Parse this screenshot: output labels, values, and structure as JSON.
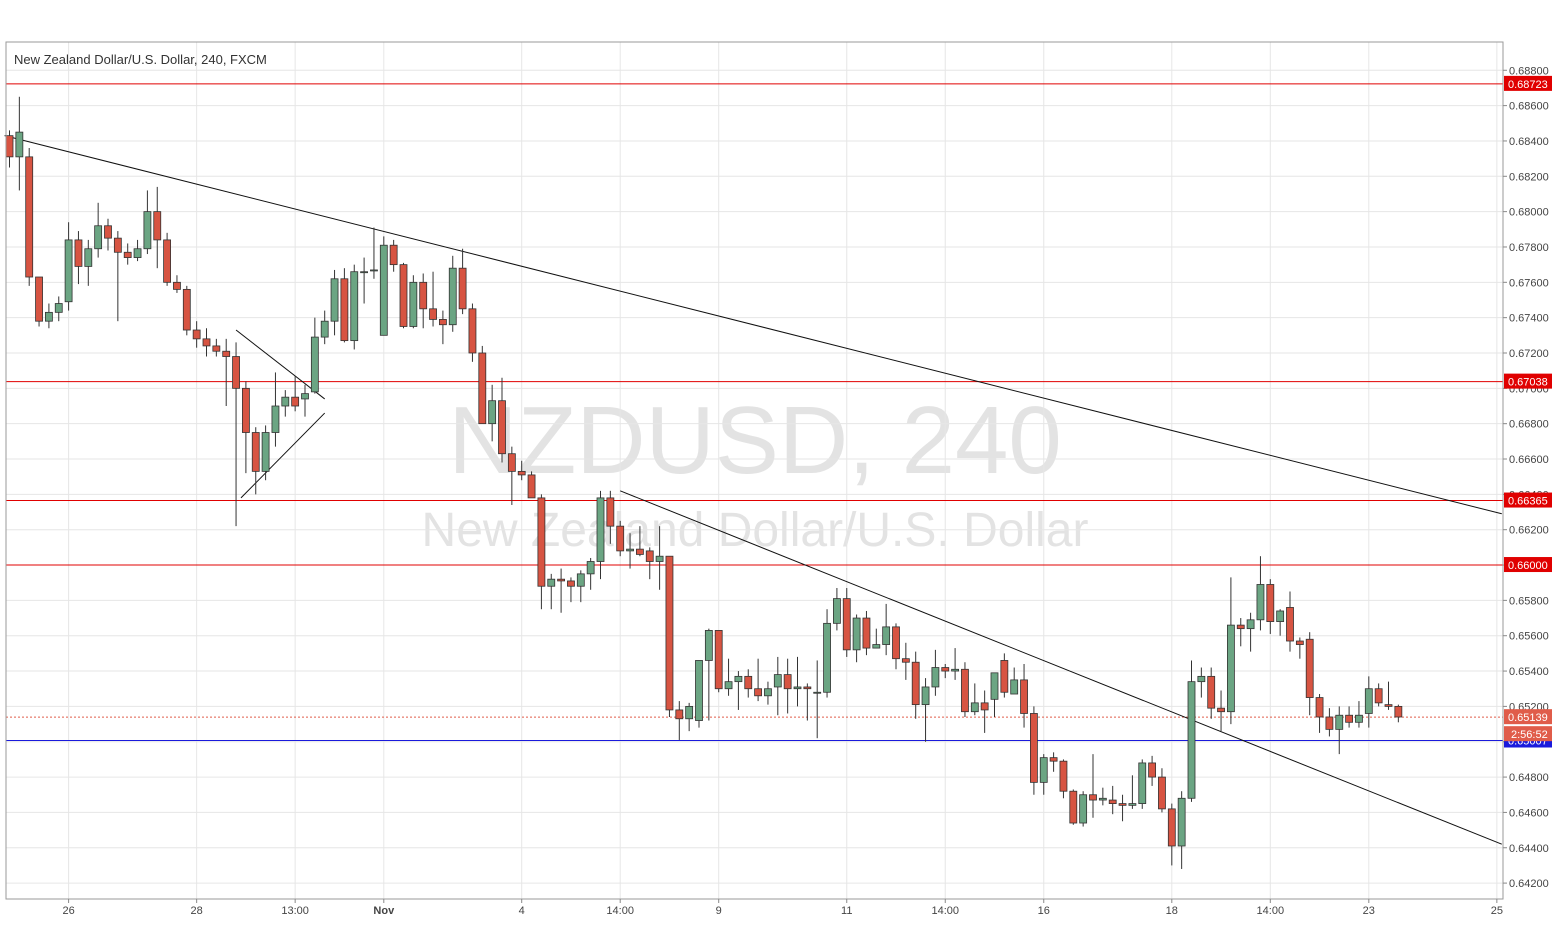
{
  "header": {
    "title": "New Zealand Dollar/U.S. Dollar, 240, FXCM"
  },
  "watermark": {
    "symbol": "NZDUSD, 240",
    "name": "New Zealand Dollar/U.S. Dollar"
  },
  "colors": {
    "up": "#6ba583",
    "down": "#d75442",
    "wick": "#333333",
    "grid": "#e6e6e6",
    "hline": "#e00000",
    "blueline": "#1a1adc",
    "trend": "#111111",
    "watermark": "#e3e3e3",
    "current": "#e05c4a"
  },
  "chart_data": {
    "type": "candlestick",
    "title": "New Zealand Dollar/U.S. Dollar, 240, FXCM",
    "ylim": [
      0.6411,
      0.6896
    ],
    "yticks": [
      "0.68800",
      "0.68600",
      "0.68400",
      "0.68200",
      "0.68000",
      "0.67800",
      "0.67600",
      "0.67400",
      "0.67200",
      "0.67000",
      "0.66800",
      "0.66600",
      "0.66400",
      "0.66200",
      "0.66000",
      "0.65800",
      "0.65600",
      "0.65400",
      "0.65200",
      "0.65000",
      "0.64800",
      "0.64600",
      "0.64400",
      "0.64200"
    ],
    "xticks": [
      {
        "label": "26",
        "idx": 6
      },
      {
        "label": "28",
        "idx": 19
      },
      {
        "label": "13:00",
        "idx": 29
      },
      {
        "label": "Nov",
        "idx": 38
      },
      {
        "label": "4",
        "idx": 52
      },
      {
        "label": "14:00",
        "idx": 62
      },
      {
        "label": "9",
        "idx": 72
      },
      {
        "label": "11",
        "idx": 85
      },
      {
        "label": "14:00",
        "idx": 95
      },
      {
        "label": "16",
        "idx": 105
      },
      {
        "label": "18",
        "idx": 118
      },
      {
        "label": "14:00",
        "idx": 128
      },
      {
        "label": "23",
        "idx": 138
      },
      {
        "label": "25",
        "idx": 151
      }
    ],
    "levels": [
      {
        "value": 0.68723,
        "label": "0.68723",
        "kind": "red"
      },
      {
        "value": 0.67038,
        "label": "0.67038",
        "kind": "red"
      },
      {
        "value": 0.66365,
        "label": "0.66365",
        "kind": "red"
      },
      {
        "value": 0.66,
        "label": "0.66000",
        "kind": "red"
      },
      {
        "value": 0.65007,
        "label": "0.65007",
        "kind": "blue"
      }
    ],
    "current_price": {
      "value": 0.65139,
      "label": "0.65139",
      "countdown": "2:56:52"
    },
    "trendlines": [
      {
        "i1": -0.5,
        "p1": 0.6843,
        "i2": 151.5,
        "p2": 0.6629
      },
      {
        "i1": 62,
        "p1": 0.6642,
        "i2": 151.5,
        "p2": 0.6442
      },
      {
        "i1": 23,
        "p1": 0.6733,
        "i2": 32,
        "p2": 0.6694
      },
      {
        "i1": 23.5,
        "p1": 0.6638,
        "i2": 32,
        "p2": 0.6686
      }
    ],
    "candles": [
      [
        0.6843,
        0.6846,
        0.6825,
        0.6831
      ],
      [
        0.6831,
        0.6865,
        0.6812,
        0.6845
      ],
      [
        0.6831,
        0.6836,
        0.6758,
        0.6763
      ],
      [
        0.6763,
        0.6763,
        0.6735,
        0.6738
      ],
      [
        0.6738,
        0.6748,
        0.6734,
        0.6743
      ],
      [
        0.6743,
        0.6752,
        0.6738,
        0.6748
      ],
      [
        0.6749,
        0.6794,
        0.6744,
        0.6784
      ],
      [
        0.6784,
        0.6789,
        0.6759,
        0.6769
      ],
      [
        0.6769,
        0.6784,
        0.6758,
        0.6779
      ],
      [
        0.6779,
        0.6805,
        0.6774,
        0.6792
      ],
      [
        0.6792,
        0.6796,
        0.6778,
        0.6785
      ],
      [
        0.6785,
        0.6789,
        0.6738,
        0.6777
      ],
      [
        0.6777,
        0.6782,
        0.677,
        0.6774
      ],
      [
        0.6774,
        0.6784,
        0.6772,
        0.6779
      ],
      [
        0.6779,
        0.6812,
        0.6776,
        0.68
      ],
      [
        0.68,
        0.6814,
        0.6768,
        0.6784
      ],
      [
        0.6784,
        0.6788,
        0.6758,
        0.676
      ],
      [
        0.676,
        0.6764,
        0.6754,
        0.6756
      ],
      [
        0.6756,
        0.6758,
        0.673,
        0.6733
      ],
      [
        0.6733,
        0.6738,
        0.6723,
        0.6728
      ],
      [
        0.6728,
        0.6734,
        0.6718,
        0.6724
      ],
      [
        0.6724,
        0.6728,
        0.6718,
        0.6721
      ],
      [
        0.6721,
        0.6728,
        0.669,
        0.6718
      ],
      [
        0.6718,
        0.6726,
        0.6622,
        0.67
      ],
      [
        0.67,
        0.6704,
        0.6652,
        0.6675
      ],
      [
        0.6675,
        0.6678,
        0.664,
        0.6653
      ],
      [
        0.6653,
        0.6679,
        0.6648,
        0.6675
      ],
      [
        0.6675,
        0.6709,
        0.6667,
        0.669
      ],
      [
        0.669,
        0.6699,
        0.6684,
        0.6695
      ],
      [
        0.6695,
        0.6707,
        0.6687,
        0.669
      ],
      [
        0.6694,
        0.6702,
        0.6684,
        0.6697
      ],
      [
        0.6698,
        0.674,
        0.6697,
        0.6729
      ],
      [
        0.6729,
        0.6744,
        0.6725,
        0.6738
      ],
      [
        0.6738,
        0.6767,
        0.673,
        0.6762
      ],
      [
        0.6762,
        0.6768,
        0.6726,
        0.6727
      ],
      [
        0.6727,
        0.677,
        0.6722,
        0.6766
      ],
      [
        0.6766,
        0.6774,
        0.6748,
        0.6766
      ],
      [
        0.6767,
        0.6791,
        0.6762,
        0.6767
      ],
      [
        0.673,
        0.6786,
        0.673,
        0.6781
      ],
      [
        0.6781,
        0.6784,
        0.6766,
        0.677
      ],
      [
        0.677,
        0.6771,
        0.6734,
        0.6735
      ],
      [
        0.6735,
        0.6764,
        0.6734,
        0.676
      ],
      [
        0.676,
        0.6765,
        0.6734,
        0.6745
      ],
      [
        0.6745,
        0.6766,
        0.6735,
        0.6739
      ],
      [
        0.6739,
        0.6744,
        0.6725,
        0.6736
      ],
      [
        0.6736,
        0.6775,
        0.6732,
        0.6768
      ],
      [
        0.6768,
        0.6779,
        0.6742,
        0.6745
      ],
      [
        0.6745,
        0.6748,
        0.6715,
        0.672
      ],
      [
        0.672,
        0.6724,
        0.668,
        0.668
      ],
      [
        0.668,
        0.6702,
        0.667,
        0.6693
      ],
      [
        0.6693,
        0.6706,
        0.6658,
        0.6663
      ],
      [
        0.6663,
        0.6667,
        0.6634,
        0.6653
      ],
      [
        0.6653,
        0.6659,
        0.6648,
        0.6651
      ],
      [
        0.6651,
        0.6653,
        0.6638,
        0.6638
      ],
      [
        0.6638,
        0.664,
        0.6575,
        0.6588
      ],
      [
        0.6588,
        0.6595,
        0.6575,
        0.6592
      ],
      [
        0.6592,
        0.6598,
        0.6573,
        0.6591
      ],
      [
        0.6591,
        0.6593,
        0.6579,
        0.6588
      ],
      [
        0.6588,
        0.6597,
        0.6579,
        0.6595
      ],
      [
        0.6595,
        0.6604,
        0.6586,
        0.6602
      ],
      [
        0.6602,
        0.6642,
        0.6592,
        0.6638
      ],
      [
        0.6638,
        0.6642,
        0.6612,
        0.6622
      ],
      [
        0.6622,
        0.6625,
        0.6605,
        0.6608
      ],
      [
        0.6608,
        0.6618,
        0.6598,
        0.6609
      ],
      [
        0.6609,
        0.6622,
        0.6605,
        0.6606
      ],
      [
        0.6608,
        0.661,
        0.6592,
        0.6602
      ],
      [
        0.6602,
        0.6622,
        0.6586,
        0.6605
      ],
      [
        0.6605,
        0.6605,
        0.6514,
        0.6518
      ],
      [
        0.6518,
        0.6523,
        0.6501,
        0.6513
      ],
      [
        0.6513,
        0.6522,
        0.6506,
        0.652
      ],
      [
        0.6512,
        0.6546,
        0.6508,
        0.6546
      ],
      [
        0.6546,
        0.6564,
        0.6512,
        0.6563
      ],
      [
        0.6563,
        0.6563,
        0.6528,
        0.653
      ],
      [
        0.653,
        0.6547,
        0.6526,
        0.6534
      ],
      [
        0.6534,
        0.654,
        0.6518,
        0.6537
      ],
      [
        0.6537,
        0.6541,
        0.6525,
        0.653
      ],
      [
        0.653,
        0.6547,
        0.6523,
        0.6526
      ],
      [
        0.6526,
        0.6534,
        0.6521,
        0.653
      ],
      [
        0.6531,
        0.6548,
        0.6515,
        0.6538
      ],
      [
        0.6538,
        0.6547,
        0.6516,
        0.653
      ],
      [
        0.653,
        0.6548,
        0.652,
        0.6531
      ],
      [
        0.6531,
        0.6533,
        0.6512,
        0.653
      ],
      [
        0.6528,
        0.6546,
        0.6502,
        0.6528
      ],
      [
        0.6528,
        0.6575,
        0.6525,
        0.6567
      ],
      [
        0.6567,
        0.6587,
        0.6563,
        0.6581
      ],
      [
        0.6581,
        0.6587,
        0.6548,
        0.6552
      ],
      [
        0.6552,
        0.6572,
        0.6545,
        0.657
      ],
      [
        0.657,
        0.6574,
        0.6549,
        0.6553
      ],
      [
        0.6553,
        0.6564,
        0.6553,
        0.6555
      ],
      [
        0.6555,
        0.6578,
        0.6549,
        0.6565
      ],
      [
        0.6565,
        0.6567,
        0.6541,
        0.6547
      ],
      [
        0.6547,
        0.6556,
        0.6535,
        0.6545
      ],
      [
        0.6545,
        0.6551,
        0.6513,
        0.6521
      ],
      [
        0.6521,
        0.6536,
        0.65,
        0.6531
      ],
      [
        0.6531,
        0.6552,
        0.6526,
        0.6542
      ],
      [
        0.6542,
        0.6544,
        0.6536,
        0.654
      ],
      [
        0.654,
        0.6553,
        0.6535,
        0.6541
      ],
      [
        0.6541,
        0.6545,
        0.6514,
        0.6517
      ],
      [
        0.6517,
        0.6533,
        0.6515,
        0.6522
      ],
      [
        0.6522,
        0.6529,
        0.6505,
        0.6518
      ],
      [
        0.6524,
        0.6539,
        0.6514,
        0.6539
      ],
      [
        0.6546,
        0.655,
        0.6525,
        0.6528
      ],
      [
        0.6527,
        0.6542,
        0.6527,
        0.6535
      ],
      [
        0.6535,
        0.6544,
        0.6508,
        0.6516
      ],
      [
        0.6516,
        0.652,
        0.647,
        0.6477
      ],
      [
        0.6477,
        0.6493,
        0.647,
        0.6491
      ],
      [
        0.6491,
        0.6494,
        0.6483,
        0.6489
      ],
      [
        0.6489,
        0.649,
        0.6468,
        0.6472
      ],
      [
        0.6472,
        0.6473,
        0.6453,
        0.6454
      ],
      [
        0.6454,
        0.6472,
        0.6452,
        0.647
      ],
      [
        0.647,
        0.6493,
        0.6457,
        0.6467
      ],
      [
        0.6467,
        0.6474,
        0.6464,
        0.6468
      ],
      [
        0.6467,
        0.6475,
        0.6459,
        0.6465
      ],
      [
        0.6465,
        0.647,
        0.6455,
        0.6464
      ],
      [
        0.6464,
        0.6481,
        0.6462,
        0.6465
      ],
      [
        0.6465,
        0.649,
        0.6462,
        0.6488
      ],
      [
        0.6488,
        0.6492,
        0.6475,
        0.648
      ],
      [
        0.648,
        0.6485,
        0.646,
        0.6462
      ],
      [
        0.6462,
        0.6465,
        0.643,
        0.6441
      ],
      [
        0.6441,
        0.6472,
        0.6428,
        0.6468
      ],
      [
        0.6468,
        0.6546,
        0.6466,
        0.6534
      ],
      [
        0.6534,
        0.6542,
        0.6525,
        0.6537
      ],
      [
        0.6537,
        0.6542,
        0.6513,
        0.6519
      ],
      [
        0.6519,
        0.6529,
        0.6506,
        0.6517
      ],
      [
        0.6517,
        0.6593,
        0.651,
        0.6566
      ],
      [
        0.6566,
        0.657,
        0.6554,
        0.6564
      ],
      [
        0.6564,
        0.6573,
        0.6551,
        0.6569
      ],
      [
        0.6569,
        0.6605,
        0.6563,
        0.6589
      ],
      [
        0.6589,
        0.6592,
        0.6561,
        0.6568
      ],
      [
        0.6568,
        0.6575,
        0.656,
        0.6574
      ],
      [
        0.6576,
        0.6585,
        0.6551,
        0.6557
      ],
      [
        0.6557,
        0.6559,
        0.6547,
        0.6555
      ],
      [
        0.6558,
        0.6562,
        0.6515,
        0.6525
      ],
      [
        0.6525,
        0.6527,
        0.6505,
        0.6514
      ],
      [
        0.6514,
        0.6519,
        0.6503,
        0.6507
      ],
      [
        0.6507,
        0.652,
        0.6493,
        0.6515
      ],
      [
        0.6515,
        0.652,
        0.6508,
        0.6511
      ],
      [
        0.6511,
        0.6523,
        0.6508,
        0.6515
      ],
      [
        0.6516,
        0.6537,
        0.6508,
        0.653
      ],
      [
        0.653,
        0.6533,
        0.652,
        0.6522
      ],
      [
        0.6521,
        0.6534,
        0.6518,
        0.652
      ],
      [
        0.652,
        0.6521,
        0.6511,
        0.6514
      ]
    ]
  }
}
